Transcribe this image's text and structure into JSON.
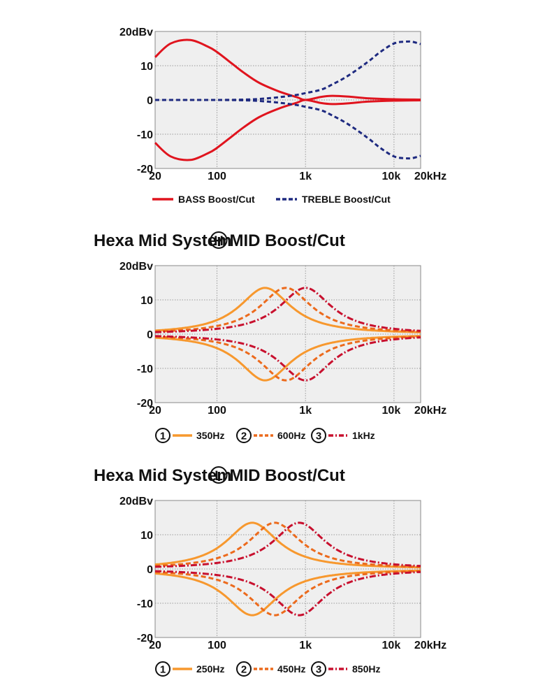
{
  "colors": {
    "bass": "#e0141e",
    "treble": "#1e2a80",
    "mid1": "#f7982e",
    "mid2": "#ec6a1c",
    "mid3": "#c8102e",
    "plot_bg": "#efefef",
    "grid": "#9a9a9a"
  },
  "chart_data": [
    {
      "type": "line",
      "title": "",
      "ylabel_top": "20dBv",
      "x_ticks": [
        "20",
        "100",
        "1k",
        "10k",
        "20kHz"
      ],
      "y_ticks": [
        "20dBv",
        "10",
        "0",
        "-10",
        "-20"
      ],
      "x_scale": "log",
      "xlim": [
        20,
        20000
      ],
      "ylim": [
        -20,
        20
      ],
      "grid": true,
      "series": [
        {
          "name": "BASS Boost/Cut",
          "style": "solid",
          "color": "#e0141e",
          "boost": {
            "x": [
              20,
              30,
              50,
              80,
              100,
              150,
              200,
              300,
              500,
              800,
              1000,
              1500,
              2000,
              3000,
              5000,
              10000,
              20000
            ],
            "y": [
              12.5,
              16.5,
              17.5,
              15.5,
              14,
              10.5,
              8,
              5,
              2.5,
              0.8,
              0,
              0.9,
              1.2,
              1,
              0.5,
              0.2,
              0.1
            ]
          },
          "cut": {
            "x": [
              20,
              30,
              50,
              80,
              100,
              150,
              200,
              300,
              500,
              800,
              1000,
              1500,
              2000,
              3000,
              5000,
              10000,
              20000
            ],
            "y": [
              -12.5,
              -16.5,
              -17.5,
              -15.5,
              -14,
              -10.5,
              -8,
              -5,
              -2.5,
              -0.8,
              0,
              -0.9,
              -1.2,
              -1,
              -0.5,
              -0.2,
              -0.1
            ]
          }
        },
        {
          "name": "TREBLE Boost/Cut",
          "style": "dashed",
          "color": "#1e2a80",
          "boost": {
            "x": [
              20,
              100,
              200,
              300,
              500,
              800,
              1000,
              1500,
              2000,
              3000,
              5000,
              7000,
              10000,
              13000,
              16000,
              20000
            ],
            "y": [
              0,
              0,
              0.1,
              0.3,
              0.8,
              1.5,
              2,
              3,
              4.5,
              7,
              11,
              14,
              16.5,
              17,
              17,
              16.3
            ]
          },
          "cut": {
            "x": [
              20,
              100,
              200,
              300,
              500,
              800,
              1000,
              1500,
              2000,
              3000,
              5000,
              7000,
              10000,
              13000,
              16000,
              20000
            ],
            "y": [
              0,
              0,
              -0.1,
              -0.3,
              -0.8,
              -1.5,
              -2,
              -3,
              -4.5,
              -7,
              -11,
              -14,
              -16.5,
              -17,
              -17,
              -16.3
            ]
          }
        }
      ],
      "legend": [
        {
          "label": "BASS Boost/Cut",
          "style": "solid",
          "color": "#e0141e"
        },
        {
          "label": "TREBLE Boost/Cut",
          "style": "dashed",
          "color": "#1e2a80"
        }
      ]
    },
    {
      "type": "line",
      "title": "Hexa Mid System",
      "title_badge": "H",
      "title_suffix": "MID Boost/Cut",
      "x_ticks": [
        "20",
        "100",
        "1k",
        "10k",
        "20kHz"
      ],
      "y_ticks": [
        "20dBv",
        "10",
        "0",
        "-10",
        "-20"
      ],
      "x_scale": "log",
      "xlim": [
        20,
        20000
      ],
      "ylim": [
        -20,
        20
      ],
      "grid": true,
      "series": [
        {
          "name": "350Hz",
          "number": "1",
          "style": "solid",
          "color": "#f7982e",
          "center": 350,
          "peak": 13.5
        },
        {
          "name": "600Hz",
          "number": "2",
          "style": "dashed",
          "color": "#ec6a1c",
          "center": 600,
          "peak": 13.5
        },
        {
          "name": "1kHz",
          "number": "3",
          "style": "dashdot",
          "color": "#c8102e",
          "center": 1000,
          "peak": 13.5
        }
      ],
      "legend": [
        {
          "number": "1",
          "label": "350Hz",
          "style": "solid",
          "color": "#f7982e"
        },
        {
          "number": "2",
          "label": "600Hz",
          "style": "dashed",
          "color": "#ec6a1c"
        },
        {
          "number": "3",
          "label": "1kHz",
          "style": "dashdot",
          "color": "#c8102e"
        }
      ]
    },
    {
      "type": "line",
      "title": "Hexa Mid System",
      "title_badge": "L",
      "title_suffix": "MID Boost/Cut",
      "x_ticks": [
        "20",
        "100",
        "1k",
        "10k",
        "20kHz"
      ],
      "y_ticks": [
        "20dBv",
        "10",
        "0",
        "-10",
        "-20"
      ],
      "x_scale": "log",
      "xlim": [
        20,
        20000
      ],
      "ylim": [
        -20,
        20
      ],
      "grid": true,
      "series": [
        {
          "name": "250Hz",
          "number": "1",
          "style": "solid",
          "color": "#f7982e",
          "center": 250,
          "peak": 13.5
        },
        {
          "name": "450Hz",
          "number": "2",
          "style": "dashed",
          "color": "#ec6a1c",
          "center": 450,
          "peak": 13.5
        },
        {
          "name": "850Hz",
          "number": "3",
          "style": "dashdot",
          "color": "#c8102e",
          "center": 850,
          "peak": 13.5
        }
      ],
      "legend": [
        {
          "number": "1",
          "label": "250Hz",
          "style": "solid",
          "color": "#f7982e"
        },
        {
          "number": "2",
          "label": "450Hz",
          "style": "dashed",
          "color": "#ec6a1c"
        },
        {
          "number": "3",
          "label": "850Hz",
          "style": "dashdot",
          "color": "#c8102e"
        }
      ]
    }
  ]
}
